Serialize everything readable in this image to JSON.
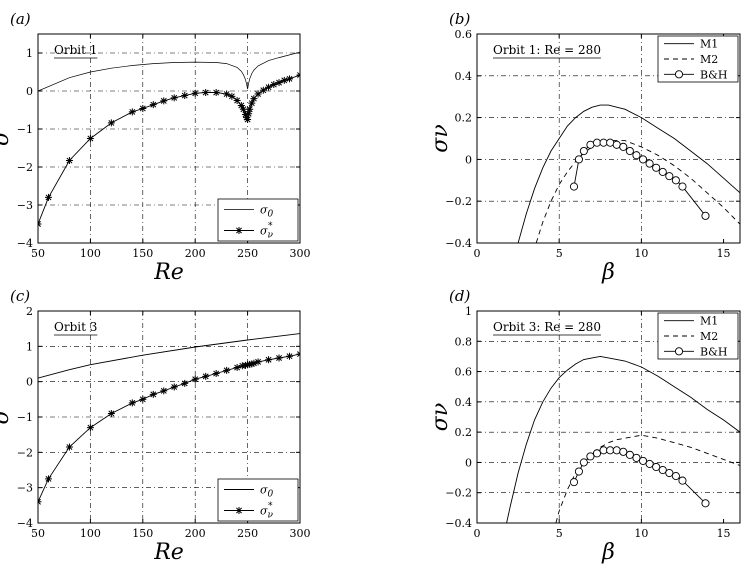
{
  "chart_data": [
    {
      "id": "a",
      "type": "line",
      "panel_label": "(a)",
      "annotation": "Orbit 1",
      "xlabel": "Re",
      "ylabel": "σ",
      "xlim": [
        50,
        300
      ],
      "ylim": [
        -4,
        1.5
      ],
      "xticks": [
        50,
        100,
        150,
        200,
        250,
        300
      ],
      "xtick_labels": [
        "50",
        "100",
        "150",
        "200",
        "250",
        "300"
      ],
      "yticks": [
        -4,
        -3,
        -2,
        -1,
        0,
        1
      ],
      "ytick_labels": [
        "−4",
        "−3",
        "−2",
        "−1",
        "0",
        "1"
      ],
      "grid": true,
      "legend_position": "bottom-right",
      "series": [
        {
          "name": "σ0",
          "legend_main": "σ",
          "legend_sub": "0",
          "style": "solid-thin",
          "x": [
            50,
            80,
            100,
            120,
            140,
            160,
            180,
            200,
            220,
            230,
            240,
            244,
            246,
            248,
            249,
            250,
            251,
            252,
            254,
            256,
            260,
            270,
            280,
            290,
            300
          ],
          "y": [
            0.0,
            0.35,
            0.5,
            0.6,
            0.67,
            0.72,
            0.75,
            0.76,
            0.75,
            0.72,
            0.62,
            0.52,
            0.43,
            0.3,
            0.18,
            0.05,
            0.2,
            0.32,
            0.46,
            0.55,
            0.66,
            0.8,
            0.88,
            0.95,
            1.02
          ]
        },
        {
          "name": "σν*",
          "legend_main": "σ",
          "legend_sub": "ν",
          "legend_sup": "*",
          "style": "solid-star",
          "x": [
            50,
            60,
            80,
            100,
            120,
            140,
            150,
            160,
            170,
            180,
            190,
            200,
            210,
            220,
            230,
            235,
            240,
            244,
            246,
            248,
            249,
            250,
            251,
            252,
            254,
            256,
            260,
            265,
            270,
            275,
            280,
            285,
            290,
            300
          ],
          "y": [
            -3.5,
            -2.8,
            -1.83,
            -1.25,
            -0.84,
            -0.55,
            -0.46,
            -0.36,
            -0.26,
            -0.18,
            -0.12,
            -0.06,
            -0.04,
            -0.04,
            -0.08,
            -0.14,
            -0.25,
            -0.38,
            -0.48,
            -0.62,
            -0.7,
            -0.75,
            -0.6,
            -0.48,
            -0.32,
            -0.2,
            -0.08,
            0.02,
            0.1,
            0.17,
            0.22,
            0.28,
            0.32,
            0.42
          ]
        }
      ]
    },
    {
      "id": "b",
      "type": "line",
      "panel_label": "(b)",
      "annotation": "Orbit 1:  Re = 280",
      "xlabel": "β",
      "ylabel": "σν",
      "xlim": [
        0,
        16
      ],
      "ylim": [
        -0.4,
        0.6
      ],
      "xticks": [
        0,
        5,
        10,
        15
      ],
      "xtick_labels": [
        "0",
        "5",
        "10",
        "15"
      ],
      "yticks": [
        -0.4,
        -0.2,
        0,
        0.2,
        0.4,
        0.6
      ],
      "ytick_labels": [
        "−0.4",
        "−0.2",
        "0",
        "0.2",
        "0.4",
        "0.6"
      ],
      "grid": true,
      "legend_position": "top-right",
      "series": [
        {
          "name": "M1",
          "style": "solid",
          "x": [
            2.5,
            3,
            3.5,
            4,
            4.5,
            5,
            5.5,
            6,
            6.5,
            7,
            7.5,
            8,
            8.5,
            9,
            10,
            11,
            12,
            13,
            14,
            15,
            16
          ],
          "y": [
            -0.4,
            -0.26,
            -0.14,
            -0.04,
            0.04,
            0.1,
            0.16,
            0.2,
            0.23,
            0.25,
            0.26,
            0.26,
            0.25,
            0.24,
            0.2,
            0.15,
            0.1,
            0.04,
            -0.02,
            -0.09,
            -0.16
          ]
        },
        {
          "name": "M2",
          "style": "dashed",
          "x": [
            3.6,
            4,
            4.5,
            5,
            5.5,
            6,
            6.5,
            7,
            7.5,
            8,
            8.5,
            9,
            10,
            11,
            12,
            13,
            14,
            15,
            16
          ],
          "y": [
            -0.4,
            -0.3,
            -0.2,
            -0.12,
            -0.06,
            -0.01,
            0.03,
            0.06,
            0.08,
            0.09,
            0.09,
            0.09,
            0.06,
            0.02,
            -0.03,
            -0.09,
            -0.16,
            -0.23,
            -0.31
          ]
        },
        {
          "name": "B&H",
          "style": "solid-circle",
          "x": [
            5.9,
            6.2,
            6.5,
            6.9,
            7.3,
            7.7,
            8.1,
            8.5,
            8.9,
            9.3,
            9.7,
            10.1,
            10.5,
            10.9,
            11.3,
            11.7,
            12.1,
            12.5,
            13.9
          ],
          "y": [
            -0.13,
            0.0,
            0.04,
            0.07,
            0.08,
            0.08,
            0.08,
            0.07,
            0.06,
            0.04,
            0.02,
            0.0,
            -0.02,
            -0.04,
            -0.06,
            -0.08,
            -0.1,
            -0.13,
            -0.27
          ]
        }
      ]
    },
    {
      "id": "c",
      "type": "line",
      "panel_label": "(c)",
      "annotation": "Orbit 3",
      "xlabel": "Re",
      "ylabel": "σ",
      "xlim": [
        50,
        300
      ],
      "ylim": [
        -4,
        2
      ],
      "xticks": [
        50,
        100,
        150,
        200,
        250,
        300
      ],
      "xtick_labels": [
        "50",
        "100",
        "150",
        "200",
        "250",
        "300"
      ],
      "yticks": [
        -4,
        -3,
        -2,
        -1,
        0,
        1,
        2
      ],
      "ytick_labels": [
        "−4",
        "−3",
        "−2",
        "−1",
        "0",
        "1",
        "2"
      ],
      "grid": true,
      "legend_position": "bottom-right",
      "series": [
        {
          "name": "σ0",
          "legend_main": "σ",
          "legend_sub": "0",
          "style": "solid",
          "x": [
            50,
            80,
            100,
            150,
            200,
            250,
            300
          ],
          "y": [
            0.1,
            0.34,
            0.48,
            0.75,
            0.98,
            1.18,
            1.36
          ]
        },
        {
          "name": "σν*",
          "legend_main": "σ",
          "legend_sub": "ν",
          "legend_sup": "*",
          "style": "solid-star",
          "x": [
            50,
            60,
            80,
            100,
            120,
            140,
            150,
            160,
            170,
            180,
            190,
            200,
            210,
            220,
            230,
            240,
            245,
            248,
            250,
            252,
            254,
            256,
            260,
            270,
            280,
            290,
            300
          ],
          "y": [
            -3.4,
            -2.75,
            -1.85,
            -1.3,
            -0.9,
            -0.6,
            -0.5,
            -0.36,
            -0.26,
            -0.15,
            -0.05,
            0.07,
            0.15,
            0.23,
            0.32,
            0.4,
            0.45,
            0.46,
            0.48,
            0.49,
            0.5,
            0.52,
            0.56,
            0.62,
            0.67,
            0.72,
            0.78
          ]
        }
      ]
    },
    {
      "id": "d",
      "type": "line",
      "panel_label": "(d)",
      "annotation": "Orbit 3:  Re = 280",
      "xlabel": "β",
      "ylabel": "σν",
      "xlim": [
        0,
        16
      ],
      "ylim": [
        -0.4,
        1
      ],
      "xticks": [
        0,
        5,
        10,
        15
      ],
      "xtick_labels": [
        "0",
        "5",
        "10",
        "15"
      ],
      "yticks": [
        -0.4,
        -0.2,
        0,
        0.2,
        0.4,
        0.6,
        0.8,
        1
      ],
      "ytick_labels": [
        "−0.4",
        "−0.2",
        "0",
        "0.2",
        "0.4",
        "0.6",
        "0.8",
        "1"
      ],
      "grid": true,
      "legend_position": "top-right",
      "series": [
        {
          "name": "M1",
          "style": "solid",
          "x": [
            1.8,
            2,
            2.5,
            3,
            3.5,
            4,
            4.5,
            5,
            5.5,
            6,
            6.5,
            7,
            7.5,
            8,
            9,
            10,
            11,
            12,
            13,
            14,
            15,
            16
          ],
          "y": [
            -0.4,
            -0.3,
            -0.07,
            0.12,
            0.28,
            0.4,
            0.49,
            0.56,
            0.61,
            0.65,
            0.68,
            0.69,
            0.7,
            0.69,
            0.67,
            0.63,
            0.57,
            0.5,
            0.43,
            0.35,
            0.28,
            0.2
          ]
        },
        {
          "name": "M2",
          "style": "dashed",
          "x": [
            4.8,
            5,
            5.5,
            6,
            6.5,
            7,
            7.5,
            8,
            8.5,
            9,
            9.5,
            10,
            10.5,
            11,
            12,
            13,
            14,
            15,
            16
          ],
          "y": [
            -0.4,
            -0.32,
            -0.18,
            -0.07,
            0.0,
            0.06,
            0.1,
            0.13,
            0.15,
            0.16,
            0.17,
            0.18,
            0.17,
            0.16,
            0.13,
            0.1,
            0.06,
            0.02,
            -0.02
          ]
        },
        {
          "name": "B&H",
          "style": "solid-circle",
          "x": [
            5.9,
            6.2,
            6.5,
            6.9,
            7.3,
            7.7,
            8.1,
            8.5,
            8.9,
            9.3,
            9.7,
            10.1,
            10.5,
            10.9,
            11.3,
            11.7,
            12.1,
            12.5,
            13.9
          ],
          "y": [
            -0.13,
            -0.06,
            0.0,
            0.04,
            0.06,
            0.08,
            0.08,
            0.08,
            0.07,
            0.05,
            0.03,
            0.01,
            -0.01,
            -0.03,
            -0.05,
            -0.07,
            -0.09,
            -0.12,
            -0.27
          ]
        }
      ]
    }
  ]
}
